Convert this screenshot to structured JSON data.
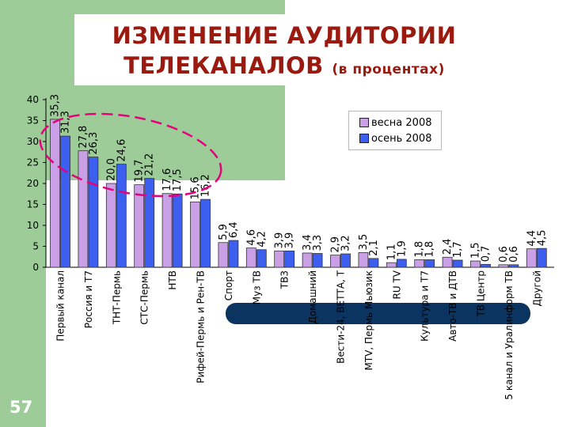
{
  "title": {
    "line1": "ИЗМЕНЕНИЕ АУДИТОРИИ",
    "line2": "ТЕЛЕКАНАЛОВ",
    "sub": "(в процентах)"
  },
  "page_number": "57",
  "colors": {
    "spring": "#c9a0e6",
    "autumn": "#3d5ff0",
    "title": "#9b1a10",
    "green_bg": "#9dcc98",
    "dark_band": "#0b3460",
    "ellipse": "#e6007e"
  },
  "chart_data": {
    "type": "bar",
    "categories": [
      "Первый канал",
      "Россия и Т7",
      "ТНТ-Пермь",
      "СТС-Пермь",
      "НТВ",
      "Рифей-Пермь и Рен-ТВ",
      "Спорт",
      "Муз ТВ",
      "ТВ3",
      "Домашний",
      "Вести-24, ВЕТТА, Т",
      "MTV, Пермь Мьюзик",
      "RU TV",
      "Культура и Т7",
      "Авто-ТВ и ДТВ",
      "ТВ Центр",
      "5 канал и Уралинформ ТВ",
      "Другой"
    ],
    "series": [
      {
        "name": "весна 2008",
        "values": [
          35.3,
          27.8,
          20.0,
          19.7,
          17.6,
          15.6,
          5.9,
          4.6,
          3.9,
          3.4,
          2.9,
          3.5,
          1.1,
          1.8,
          2.4,
          1.5,
          0.6,
          4.4
        ],
        "labels": [
          "35,3",
          "27,8",
          "20,0",
          "19,7",
          "17,6",
          "15,6",
          "5,9",
          "4,6",
          "3,9",
          "3,4",
          "2,9",
          "3,5",
          "1,1",
          "1,8",
          "2,4",
          "1,5",
          "0,6",
          "4,4"
        ]
      },
      {
        "name": "осень 2008",
        "values": [
          31.3,
          26.3,
          24.6,
          21.2,
          17.5,
          16.2,
          6.4,
          4.2,
          3.9,
          3.3,
          3.2,
          2.1,
          1.9,
          1.8,
          1.7,
          0.7,
          0.6,
          4.5
        ],
        "labels": [
          "31,3",
          "26,3",
          "24,6",
          "21,2",
          "17,5",
          "16,2",
          "6,4",
          "4,2",
          "3,9",
          "3,3",
          "3,2",
          "2,1",
          "1,9",
          "1,8",
          "1,7",
          "0,7",
          "0,6",
          "4,5"
        ]
      }
    ],
    "yticks": [
      "0",
      "5",
      "10",
      "15",
      "20",
      "25",
      "30",
      "35",
      "40"
    ],
    "ylim": [
      0,
      40
    ],
    "legend_position": "top-right",
    "grid": false
  }
}
